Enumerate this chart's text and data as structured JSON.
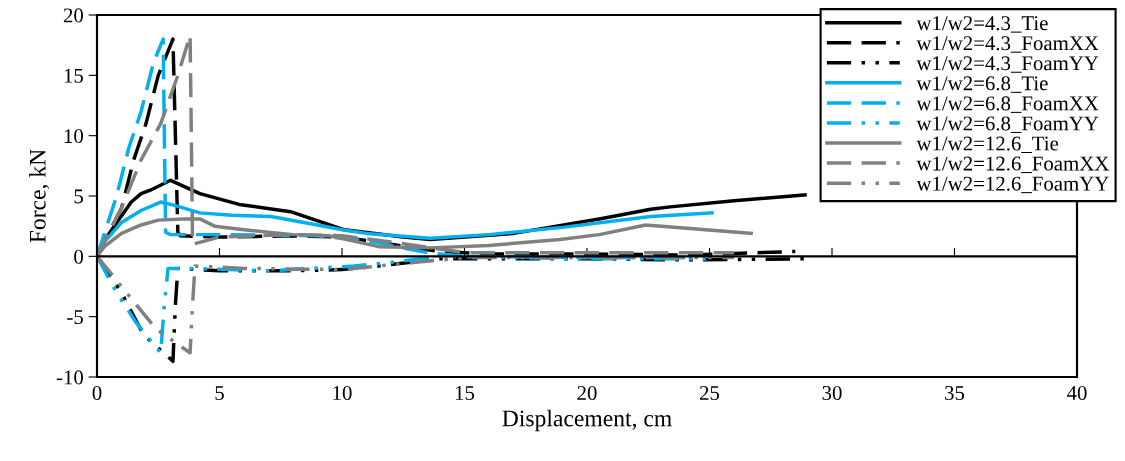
{
  "chart_data": {
    "type": "line",
    "xlabel": "Displacement, cm",
    "ylabel": "Force, kN",
    "xlim": [
      0,
      40
    ],
    "ylim": [
      -10,
      20
    ],
    "xticks": [
      0,
      5,
      10,
      15,
      20,
      25,
      30,
      35,
      40
    ],
    "yticks": [
      -10,
      -5,
      0,
      5,
      10,
      15,
      20
    ],
    "legend": "top right",
    "marker": "none",
    "series": [
      {
        "name": "w1/w2=4.3_Tie",
        "color": "#000000",
        "line_style": "solid",
        "x": [
          0,
          0.2,
          0.7,
          1.4,
          1.8,
          2.2,
          3.0,
          4.2,
          5.8,
          7.9,
          10.1,
          12.5,
          13.6,
          17,
          20.5,
          22.6,
          23.4,
          26,
          28.9
        ],
        "values": [
          0,
          1,
          2.5,
          4.5,
          5.2,
          5.5,
          6.3,
          5.2,
          4.3,
          3.7,
          2.2,
          1.6,
          1.4,
          1.9,
          3.1,
          3.9,
          4.1,
          4.6,
          5.1
        ]
      },
      {
        "name": "w1/w2=4.3_FoamXX",
        "color": "#000000",
        "line_style": "dashed",
        "x": [
          0,
          1,
          1.5,
          2,
          2.5,
          3.1,
          3.2,
          3.3,
          3.4,
          5,
          8,
          10,
          12,
          14,
          16,
          20,
          24,
          28.5
        ],
        "values": [
          0,
          4,
          8,
          11,
          15,
          18,
          10,
          2,
          1.7,
          1.6,
          1.7,
          1.6,
          1.0,
          0.4,
          0.2,
          0.2,
          0.1,
          0.4
        ]
      },
      {
        "name": "w1/w2=4.3_FoamYY",
        "color": "#000000",
        "line_style": "dashdotdot",
        "x": [
          0,
          1,
          1.9,
          3.1,
          3.2,
          3.3,
          5,
          8,
          10,
          11.5,
          14,
          20,
          24,
          29
        ],
        "values": [
          0,
          -3,
          -6.5,
          -8.7,
          -4,
          -1,
          -1.2,
          -1.2,
          -1.1,
          -0.8,
          -0.2,
          -0.2,
          -0.3,
          -0.2
        ]
      },
      {
        "name": "w1/w2=6.8_Tie",
        "color": "#00b0f0",
        "line_style": "solid",
        "x": [
          0,
          0.3,
          1,
          1.8,
          2.6,
          3.2,
          4.2,
          5.5,
          7.1,
          9,
          10,
          11,
          13.6,
          16,
          19,
          22.6,
          25.1
        ],
        "values": [
          0,
          1.2,
          2.8,
          3.8,
          4.5,
          4.2,
          3.6,
          3.4,
          3.3,
          2.6,
          2.2,
          1.9,
          1.5,
          1.8,
          2.4,
          3.3,
          3.6
        ]
      },
      {
        "name": "w1/w2=6.8_FoamXX",
        "color": "#00b0f0",
        "line_style": "dashed",
        "x": [
          0,
          0.8,
          1.3,
          1.8,
          2.3,
          2.7,
          2.75,
          2.8,
          3,
          5,
          9,
          11,
          13.5,
          15,
          20,
          24
        ],
        "values": [
          0,
          5,
          9,
          12,
          16,
          18,
          10,
          2,
          1.8,
          1.8,
          1.7,
          1.3,
          0.3,
          0,
          -0.1,
          -0.1
        ]
      },
      {
        "name": "w1/w2=6.8_FoamYY",
        "color": "#00b0f0",
        "line_style": "dashdotdot",
        "x": [
          0,
          0.8,
          1.6,
          2.6,
          2.75,
          2.9,
          4,
          7,
          10.5,
          12,
          14,
          20,
          25
        ],
        "values": [
          0,
          -3,
          -5.5,
          -8,
          -4,
          -1,
          -1,
          -1.2,
          -0.8,
          -0.5,
          0,
          -0.2,
          -0.2
        ]
      },
      {
        "name": "w1/w2=12.6_Tie",
        "color": "#808080",
        "line_style": "solid",
        "x": [
          0,
          0.3,
          1,
          1.8,
          2.5,
          3.5,
          4.2,
          4.8,
          6,
          8,
          9.5,
          11.5,
          13.6,
          16,
          18.9,
          20.5,
          22.4,
          26.7
        ],
        "values": [
          0,
          0.8,
          1.9,
          2.6,
          3.0,
          3.1,
          3.1,
          2.5,
          2.2,
          1.8,
          1.7,
          0.8,
          0.7,
          0.9,
          1.4,
          1.8,
          2.6,
          1.9
        ]
      },
      {
        "name": "w1/w2=12.6_FoamXX",
        "color": "#808080",
        "line_style": "dashed",
        "x": [
          0,
          1,
          1.8,
          2.6,
          3.3,
          3.8,
          3.85,
          3.9,
          5,
          8,
          10,
          12,
          15,
          20,
          26
        ],
        "values": [
          0,
          4,
          8,
          11,
          15,
          18.3,
          10,
          1.0,
          1.6,
          1.8,
          1.7,
          1.2,
          0.3,
          0.3,
          0.3
        ]
      },
      {
        "name": "w1/w2=12.6_FoamYY",
        "color": "#808080",
        "line_style": "dashdotdot",
        "x": [
          0,
          1,
          2.4,
          3.8,
          3.9,
          4.0,
          6,
          10,
          13,
          15,
          20,
          26
        ],
        "values": [
          0,
          -2.5,
          -6,
          -8,
          -4,
          -0.8,
          -1,
          -1.1,
          -0.5,
          -0.1,
          -0.1,
          -0.1
        ]
      }
    ]
  }
}
